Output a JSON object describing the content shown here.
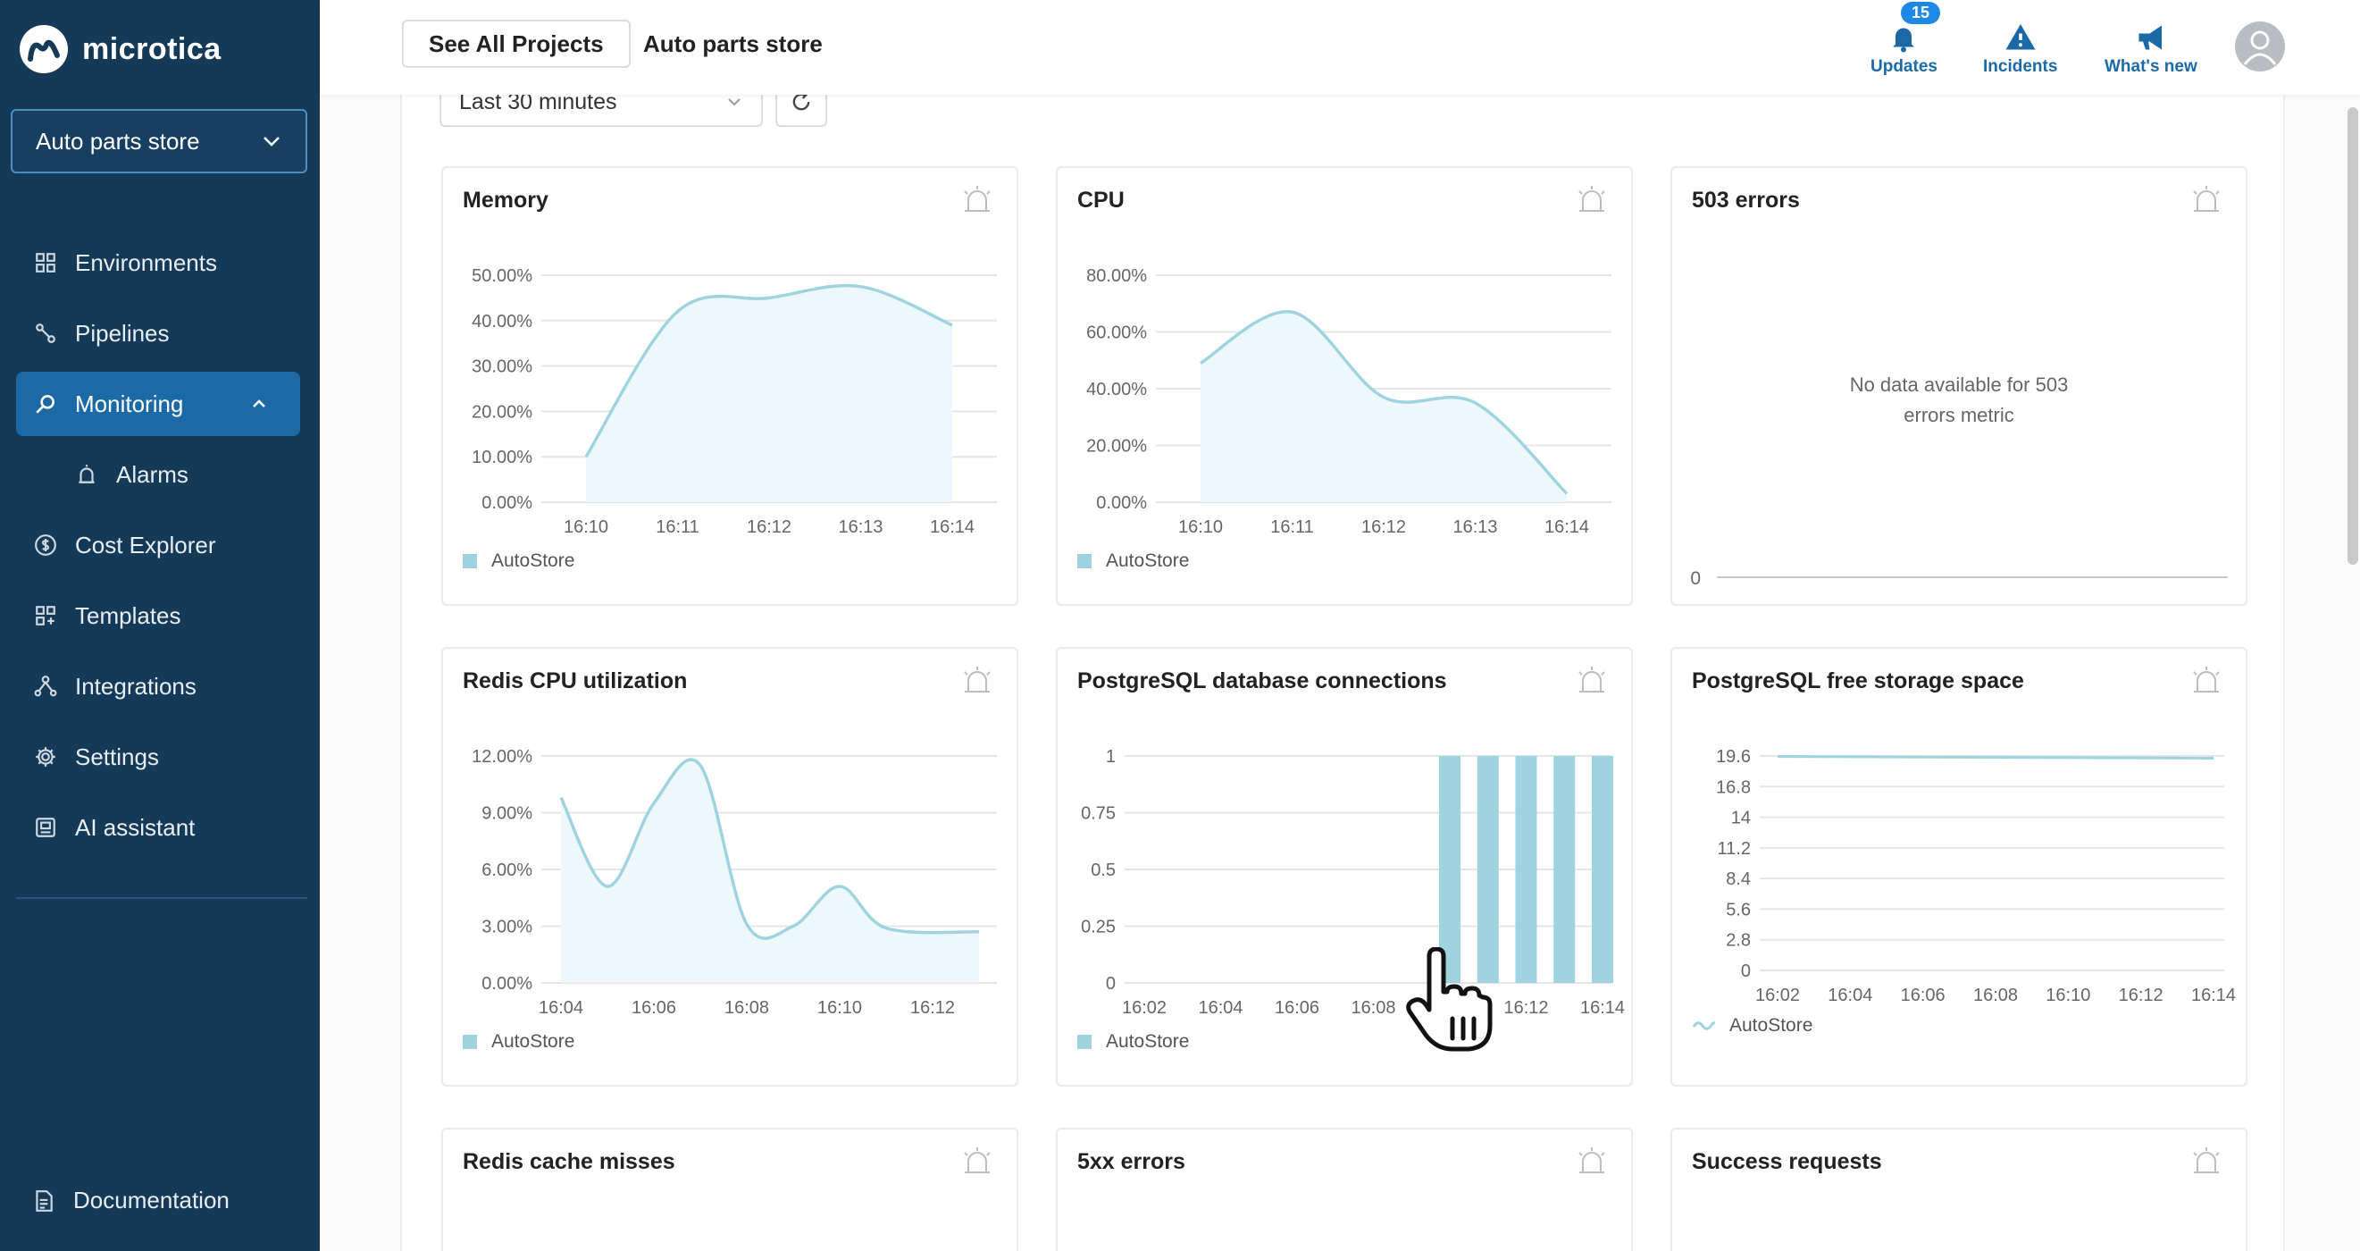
{
  "sidebar": {
    "brand": "microtica",
    "project": "Auto parts store",
    "items": [
      {
        "label": "Environments",
        "icon": "grid-icon"
      },
      {
        "label": "Pipelines",
        "icon": "pipeline-icon"
      },
      {
        "label": "Monitoring",
        "icon": "search-icon",
        "active": true
      },
      {
        "label": "Alarms",
        "icon": "alarm-icon",
        "sub": true
      },
      {
        "label": "Cost Explorer",
        "icon": "dollar-icon"
      },
      {
        "label": "Templates",
        "icon": "templates-icon"
      },
      {
        "label": "Integrations",
        "icon": "integrations-icon"
      },
      {
        "label": "Settings",
        "icon": "gear-icon"
      },
      {
        "label": "AI assistant",
        "icon": "ai-icon"
      }
    ],
    "documentation": "Documentation"
  },
  "header": {
    "see_all_projects": "See All Projects",
    "breadcrumb": "Auto parts store",
    "updates": {
      "label": "Updates",
      "badge": "15"
    },
    "incidents": "Incidents",
    "whats_new": "What's new"
  },
  "toolbar": {
    "time_range": "Last 30 minutes"
  },
  "colors": {
    "accent": "#1b6aa6",
    "sidebar": "#143a58",
    "series": "#9fd3e0"
  },
  "chart_data": [
    {
      "id": "memory",
      "title": "Memory",
      "type": "area",
      "x": [
        "16:10",
        "16:11",
        "16:12",
        "16:13",
        "16:14"
      ],
      "ylim": [
        0,
        50
      ],
      "yticks": [
        "0.00%",
        "10.00%",
        "20.00%",
        "30.00%",
        "40.00%",
        "50.00%"
      ],
      "series": [
        {
          "name": "AutoStore",
          "points": [
            [
              0,
              10
            ],
            [
              1,
              42
            ],
            [
              2,
              45
            ],
            [
              3,
              47.5
            ],
            [
              4,
              39
            ]
          ]
        }
      ]
    },
    {
      "id": "cpu",
      "title": "CPU",
      "type": "area",
      "x": [
        "16:10",
        "16:11",
        "16:12",
        "16:13",
        "16:14"
      ],
      "ylim": [
        0,
        80
      ],
      "yticks": [
        "0.00%",
        "20.00%",
        "40.00%",
        "60.00%",
        "80.00%"
      ],
      "series": [
        {
          "name": "AutoStore",
          "points": [
            [
              0,
              49
            ],
            [
              1,
              67
            ],
            [
              2,
              37
            ],
            [
              3,
              35
            ],
            [
              4,
              3
            ]
          ]
        }
      ]
    },
    {
      "id": "errors503",
      "title": "503 errors",
      "type": "line",
      "empty_message": [
        "No data available for 503",
        "errors metric"
      ],
      "yticks": [
        "0"
      ]
    },
    {
      "id": "redis_cpu",
      "title": "Redis CPU utilization",
      "type": "area",
      "x": [
        "16:04",
        "16:06",
        "16:08",
        "16:10",
        "16:12"
      ],
      "ylim": [
        0,
        12
      ],
      "yticks": [
        "0.00%",
        "3.00%",
        "6.00%",
        "9.00%",
        "12.00%"
      ],
      "series": [
        {
          "name": "AutoStore",
          "points": [
            [
              0,
              9.8
            ],
            [
              0.5,
              5.1
            ],
            [
              1,
              9.5
            ],
            [
              1.5,
              11.5
            ],
            [
              2,
              3.1
            ],
            [
              2.5,
              3.0
            ],
            [
              3,
              5.1
            ],
            [
              3.5,
              2.9
            ],
            [
              4.5,
              2.7
            ]
          ]
        }
      ]
    },
    {
      "id": "pg_connections",
      "title": "PostgreSQL database connections",
      "type": "bar",
      "x": [
        "16:02",
        "16:04",
        "16:06",
        "16:08",
        "16:10",
        "16:12",
        "16:14"
      ],
      "ylim": [
        0,
        1
      ],
      "yticks": [
        "0",
        "0.25",
        "0.5",
        "0.75",
        "1"
      ],
      "series": [
        {
          "name": "AutoStore",
          "points": [
            [
              4.0,
              1
            ],
            [
              4.5,
              1
            ],
            [
              5.0,
              1
            ],
            [
              5.5,
              1
            ],
            [
              6.0,
              1
            ]
          ]
        }
      ]
    },
    {
      "id": "pg_storage",
      "title": "PostgreSQL free storage space",
      "type": "line",
      "x": [
        "16:02",
        "16:04",
        "16:06",
        "16:08",
        "16:10",
        "16:12",
        "16:14"
      ],
      "ylim": [
        0,
        19.6
      ],
      "yticks": [
        "0",
        "2.8",
        "5.6",
        "8.4",
        "11.2",
        "14",
        "16.8",
        "19.6"
      ],
      "series": [
        {
          "name": "AutoStore",
          "points": [
            [
              0,
              19.55
            ],
            [
              2,
              19.5
            ],
            [
              4,
              19.45
            ],
            [
              6,
              19.4
            ]
          ]
        }
      ]
    },
    {
      "id": "redis_misses",
      "title": "Redis cache misses",
      "type": "line"
    },
    {
      "id": "errors5xx",
      "title": "5xx errors",
      "type": "line"
    },
    {
      "id": "success",
      "title": "Success requests",
      "type": "line"
    }
  ]
}
